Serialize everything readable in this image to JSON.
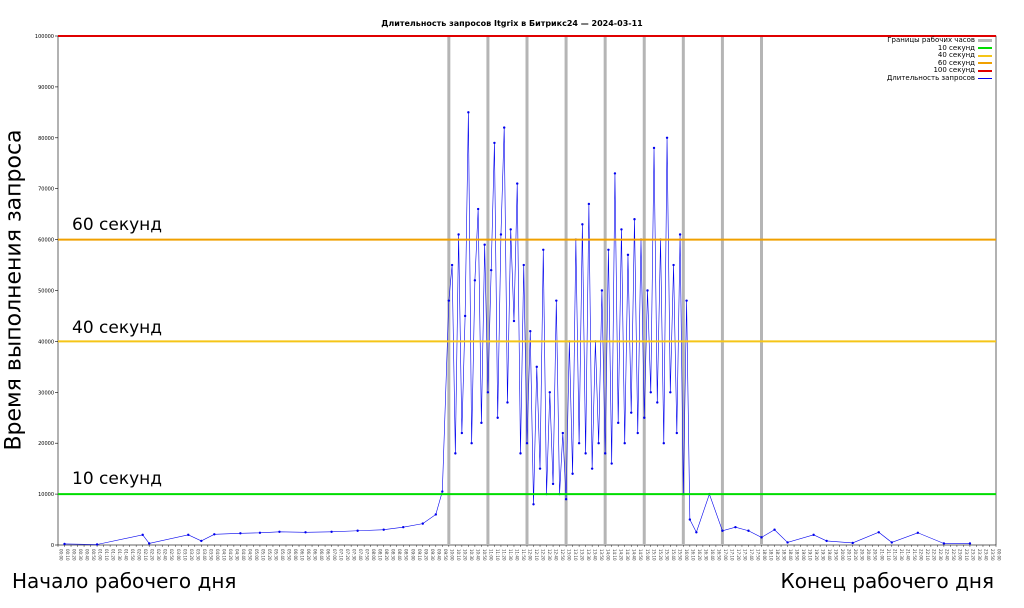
{
  "colors": {
    "business_hours": "#b5b5b5",
    "sec10": "#00dd00",
    "sec40": "#f5c518",
    "sec60": "#f0a000",
    "sec100": "#e00000",
    "series": "#0000ee"
  },
  "chart_data": {
    "type": "line",
    "title": "Длительность запросов Itgrix в Битрикс24 — 2024-03-11",
    "ylabel": "Время выполнения запроса",
    "ylim": [
      0,
      100000
    ],
    "yticks": [
      0,
      10000,
      20000,
      30000,
      40000,
      50000,
      60000,
      70000,
      80000,
      90000,
      100000
    ],
    "x_tick_interval_minutes": 10,
    "xlim": [
      "00:00",
      "24:00"
    ],
    "legend_position": "top-right",
    "legend": [
      "Границы рабочих часов",
      "10 секунд",
      "40 секунд",
      "60 секунд",
      "100 секунд",
      "Длительность запросов"
    ],
    "thresholds": [
      {
        "name": "10 секунд",
        "value": 10000,
        "label": "10 секунд"
      },
      {
        "name": "40 секунд",
        "value": 40000,
        "label": "40 секунд"
      },
      {
        "name": "60 секунд",
        "value": 60000,
        "label": "60 секунд"
      },
      {
        "name": "100 секунд",
        "value": 100000,
        "label": ""
      }
    ],
    "business_hour_boundaries": [
      "10:00",
      "11:00",
      "12:00",
      "13:00",
      "14:00",
      "15:00",
      "16:00",
      "17:00",
      "18:00"
    ],
    "series": [
      {
        "name": "Длительность запросов",
        "points": [
          [
            "00:10",
            200
          ],
          [
            "01:00",
            100
          ],
          [
            "02:10",
            2000
          ],
          [
            "02:20",
            300
          ],
          [
            "03:20",
            2000
          ],
          [
            "03:40",
            800
          ],
          [
            "04:00",
            2100
          ],
          [
            "04:40",
            2300
          ],
          [
            "05:10",
            2400
          ],
          [
            "05:40",
            2600
          ],
          [
            "06:20",
            2500
          ],
          [
            "07:00",
            2600
          ],
          [
            "07:40",
            2800
          ],
          [
            "08:20",
            3000
          ],
          [
            "08:50",
            3500
          ],
          [
            "09:20",
            4200
          ],
          [
            "09:40",
            6000
          ],
          [
            "09:50",
            10500
          ],
          [
            "10:00",
            48000
          ],
          [
            "10:05",
            55000
          ],
          [
            "10:10",
            18000
          ],
          [
            "10:15",
            61000
          ],
          [
            "10:20",
            22000
          ],
          [
            "10:25",
            45000
          ],
          [
            "10:30",
            85000
          ],
          [
            "10:35",
            20000
          ],
          [
            "10:40",
            52000
          ],
          [
            "10:45",
            66000
          ],
          [
            "10:50",
            24000
          ],
          [
            "10:55",
            59000
          ],
          [
            "11:00",
            30000
          ],
          [
            "11:05",
            54000
          ],
          [
            "11:10",
            79000
          ],
          [
            "11:15",
            25000
          ],
          [
            "11:20",
            61000
          ],
          [
            "11:25",
            82000
          ],
          [
            "11:30",
            28000
          ],
          [
            "11:35",
            62000
          ],
          [
            "11:40",
            44000
          ],
          [
            "11:45",
            71000
          ],
          [
            "11:50",
            18000
          ],
          [
            "11:55",
            55000
          ],
          [
            "12:00",
            20000
          ],
          [
            "12:05",
            42000
          ],
          [
            "12:10",
            8000
          ],
          [
            "12:15",
            35000
          ],
          [
            "12:20",
            15000
          ],
          [
            "12:25",
            58000
          ],
          [
            "12:30",
            10000
          ],
          [
            "12:35",
            30000
          ],
          [
            "12:40",
            12000
          ],
          [
            "12:45",
            48000
          ],
          [
            "12:50",
            10000
          ],
          [
            "12:55",
            22000
          ],
          [
            "13:00",
            9000
          ],
          [
            "13:05",
            40000
          ],
          [
            "13:10",
            14000
          ],
          [
            "13:15",
            60000
          ],
          [
            "13:20",
            20000
          ],
          [
            "13:25",
            63000
          ],
          [
            "13:30",
            18000
          ],
          [
            "13:35",
            67000
          ],
          [
            "13:40",
            15000
          ],
          [
            "13:45",
            40000
          ],
          [
            "13:50",
            20000
          ],
          [
            "13:55",
            50000
          ],
          [
            "14:00",
            18000
          ],
          [
            "14:05",
            58000
          ],
          [
            "14:10",
            16000
          ],
          [
            "14:15",
            73000
          ],
          [
            "14:20",
            24000
          ],
          [
            "14:25",
            62000
          ],
          [
            "14:30",
            20000
          ],
          [
            "14:35",
            57000
          ],
          [
            "14:40",
            26000
          ],
          [
            "14:45",
            64000
          ],
          [
            "14:50",
            22000
          ],
          [
            "14:55",
            60000
          ],
          [
            "15:00",
            25000
          ],
          [
            "15:05",
            50000
          ],
          [
            "15:10",
            30000
          ],
          [
            "15:15",
            78000
          ],
          [
            "15:20",
            28000
          ],
          [
            "15:25",
            60000
          ],
          [
            "15:30",
            20000
          ],
          [
            "15:35",
            80000
          ],
          [
            "15:40",
            30000
          ],
          [
            "15:45",
            55000
          ],
          [
            "15:50",
            22000
          ],
          [
            "15:55",
            61000
          ],
          [
            "16:00",
            10000
          ],
          [
            "16:05",
            48000
          ],
          [
            "16:10",
            5000
          ],
          [
            "16:20",
            2500
          ],
          [
            "16:40",
            10000
          ],
          [
            "17:00",
            2800
          ],
          [
            "17:20",
            3500
          ],
          [
            "17:40",
            2800
          ],
          [
            "18:00",
            1500
          ],
          [
            "18:20",
            3000
          ],
          [
            "18:40",
            500
          ],
          [
            "19:20",
            2000
          ],
          [
            "19:40",
            800
          ],
          [
            "20:20",
            400
          ],
          [
            "21:00",
            2500
          ],
          [
            "21:20",
            500
          ],
          [
            "22:00",
            2400
          ],
          [
            "22:40",
            300
          ],
          [
            "23:20",
            300
          ]
        ]
      }
    ]
  },
  "annotations": {
    "label_60": "60 секунд",
    "label_40": "40 секунд",
    "label_10": "10 секунд",
    "start_caption": "Начало рабочего дня",
    "end_caption": "Конец рабочего дня"
  }
}
